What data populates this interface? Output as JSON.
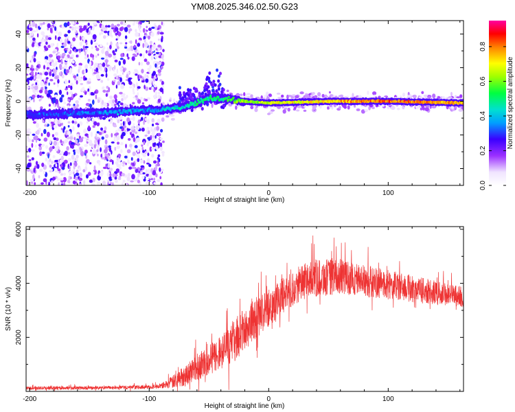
{
  "title": "YM08.2025.346.02.50.G23",
  "chart_data": [
    {
      "type": "heatmap",
      "name": "spectrogram",
      "xlabel": "Height of straight line (km)",
      "ylabel": "Frequency (Hz)",
      "xlim": [
        -203,
        163
      ],
      "ylim": [
        -50,
        48
      ],
      "xticks": [
        -200,
        -100,
        0,
        100
      ],
      "xtick_labels": [
        "-200",
        "-100",
        "0",
        "100"
      ],
      "yticks": [
        -40,
        -20,
        0,
        20,
        40
      ],
      "ytick_labels": [
        "-40",
        "-20",
        "0",
        "20",
        "40"
      ],
      "ridge": {
        "description": "dominant frequency track",
        "x": [
          -203,
          -150,
          -120,
          -100,
          -90,
          -75,
          -60,
          -50,
          -40,
          -30,
          -20,
          0,
          50,
          100,
          163
        ],
        "y": [
          -8,
          -7,
          -6,
          -5,
          -5,
          -4,
          -1,
          2,
          2,
          1,
          0,
          -1,
          0,
          0,
          -1
        ],
        "amplitude": [
          0.3,
          0.35,
          0.4,
          0.35,
          0.4,
          0.45,
          0.5,
          0.5,
          0.55,
          0.6,
          0.65,
          0.7,
          0.75,
          0.85,
          0.8
        ]
      },
      "colorbar": {
        "label": "Normalized spectral amplitude",
        "range": [
          0,
          0.95
        ],
        "ticks": [
          0.0,
          0.2,
          0.4,
          0.6,
          0.8
        ],
        "tick_labels": [
          "0.0",
          "0.2",
          "0.4",
          "0.6",
          "0.8"
        ]
      }
    },
    {
      "type": "line",
      "name": "snr",
      "xlabel": "Height of straight line (km)",
      "ylabel": "SNR (10 * v/v)",
      "xlim": [
        -203,
        163
      ],
      "ylim": [
        0,
        6100
      ],
      "xticks": [
        -200,
        -100,
        0,
        100
      ],
      "xtick_labels": [
        "-200",
        "-100",
        "0",
        "100"
      ],
      "yticks": [
        2000,
        4000,
        6000
      ],
      "ytick_labels": [
        "2000",
        "4000",
        "6000"
      ],
      "series": [
        {
          "name": "SNR",
          "color": "#ee3333",
          "envelope_x": [
            -203,
            -150,
            -100,
            -90,
            -80,
            -70,
            -60,
            -50,
            -40,
            -30,
            -20,
            -10,
            0,
            10,
            20,
            30,
            40,
            60,
            80,
            100,
            120,
            140,
            163
          ],
          "envelope_y": [
            120,
            130,
            160,
            200,
            350,
            600,
            900,
            1150,
            1450,
            1800,
            2300,
            2700,
            3100,
            3500,
            3800,
            4050,
            4200,
            4250,
            4100,
            3950,
            3800,
            3650,
            3500
          ],
          "noise_amplitude": [
            60,
            60,
            70,
            90,
            250,
            400,
            500,
            550,
            650,
            750,
            800,
            800,
            700,
            650,
            650,
            650,
            700,
            650,
            600,
            550,
            500,
            450,
            400
          ]
        }
      ]
    }
  ]
}
